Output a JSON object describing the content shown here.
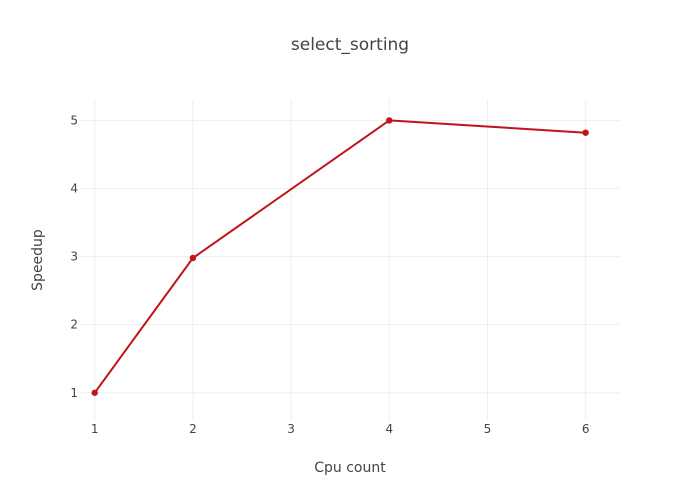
{
  "chart_data": {
    "type": "line",
    "title": "select_sorting",
    "xlabel": "Cpu count",
    "ylabel": "Speedup",
    "x": [
      1,
      2,
      4,
      6
    ],
    "series": [
      {
        "values": [
          1.0,
          2.98,
          5.0,
          4.82
        ],
        "color": "#c0141c"
      }
    ],
    "x_ticks": [
      1,
      2,
      3,
      4,
      5,
      6
    ],
    "y_ticks": [
      1,
      2,
      3,
      4,
      5
    ],
    "xlim": [
      0.85,
      6.35
    ],
    "ylim": [
      0.6,
      5.3
    ],
    "grid": true,
    "legend": false
  }
}
